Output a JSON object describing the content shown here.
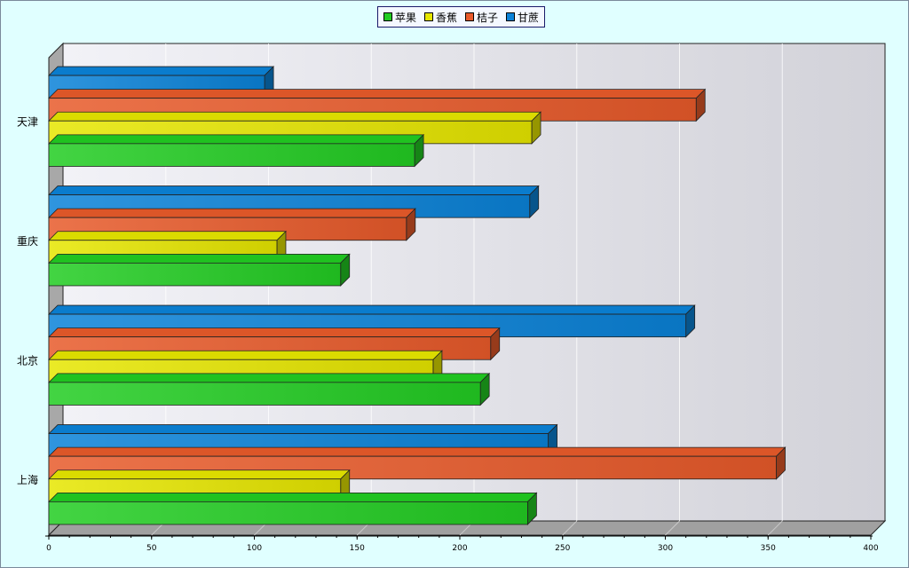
{
  "chart_data": {
    "type": "bar",
    "orientation": "horizontal",
    "render_3d": true,
    "categories": [
      "上海",
      "北京",
      "重庆",
      "天津"
    ],
    "series": [
      {
        "name": "苹果",
        "color": "#22cc22",
        "values": [
          233,
          210,
          142,
          178
        ]
      },
      {
        "name": "香蕉",
        "color": "#e6e600",
        "values": [
          142,
          187,
          111,
          235
        ]
      },
      {
        "name": "桔子",
        "color": "#e85a2a",
        "values": [
          354,
          215,
          174,
          315
        ]
      },
      {
        "name": "甘蔗",
        "color": "#0a82d8",
        "values": [
          243,
          310,
          234,
          105
        ]
      }
    ],
    "xlim": [
      0,
      400
    ],
    "x_ticks": [
      "0",
      "50",
      "100",
      "150",
      "200",
      "250",
      "300",
      "350",
      "400"
    ],
    "grid": true,
    "legend_position": "top-center",
    "title": "",
    "xlabel": "",
    "ylabel": ""
  }
}
